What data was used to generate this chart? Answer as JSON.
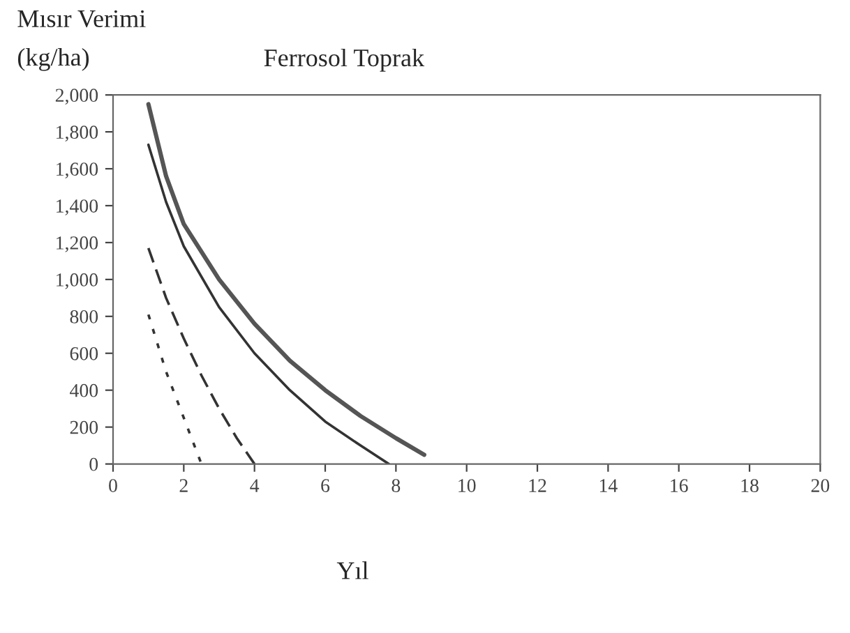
{
  "chart_data": {
    "type": "line",
    "title": "Ferrosol Toprak",
    "ylabel": "Mısır Verimi\n(kg/ha)",
    "xlabel": "Yıl",
    "xlim": [
      0,
      20
    ],
    "xticks": [
      0,
      2,
      4,
      6,
      8,
      10,
      12,
      14,
      16,
      18,
      20
    ],
    "ylim": [
      0,
      2000
    ],
    "yticks": [
      0,
      200,
      400,
      600,
      800,
      {
        "value": 1000,
        "label": "1,000"
      },
      {
        "value": 1200,
        "label": "1,200"
      },
      {
        "value": 1400,
        "label": "1,400"
      },
      {
        "value": 1600,
        "label": "1,600"
      },
      {
        "value": 1800,
        "label": "1,800"
      },
      {
        "value": 2000,
        "label": "2,000"
      }
    ],
    "grid": false,
    "legend": false,
    "marker": "none",
    "series": [
      {
        "color": "#555555",
        "line_style": "solid",
        "x": [
          1,
          1.5,
          2,
          3,
          4,
          5,
          6,
          7,
          8,
          8.8
        ],
        "values": [
          1950,
          1560,
          1300,
          1000,
          760,
          560,
          400,
          260,
          140,
          50
        ]
      },
      {
        "color": "#333333",
        "line_style": "solid",
        "x": [
          1,
          1.5,
          2,
          3,
          4,
          5,
          6,
          7,
          7.8
        ],
        "values": [
          1730,
          1420,
          1180,
          850,
          600,
          400,
          230,
          100,
          0
        ]
      },
      {
        "color": "#333333",
        "line_style": "dashed",
        "x": [
          1,
          1.5,
          2,
          2.5,
          3,
          3.5,
          4
        ],
        "values": [
          1170,
          900,
          680,
          480,
          300,
          140,
          0
        ]
      },
      {
        "color": "#333333",
        "line_style": "dotted",
        "x": [
          1,
          1.5,
          2,
          2.5
        ],
        "values": [
          810,
          500,
          250,
          0
        ]
      }
    ]
  }
}
